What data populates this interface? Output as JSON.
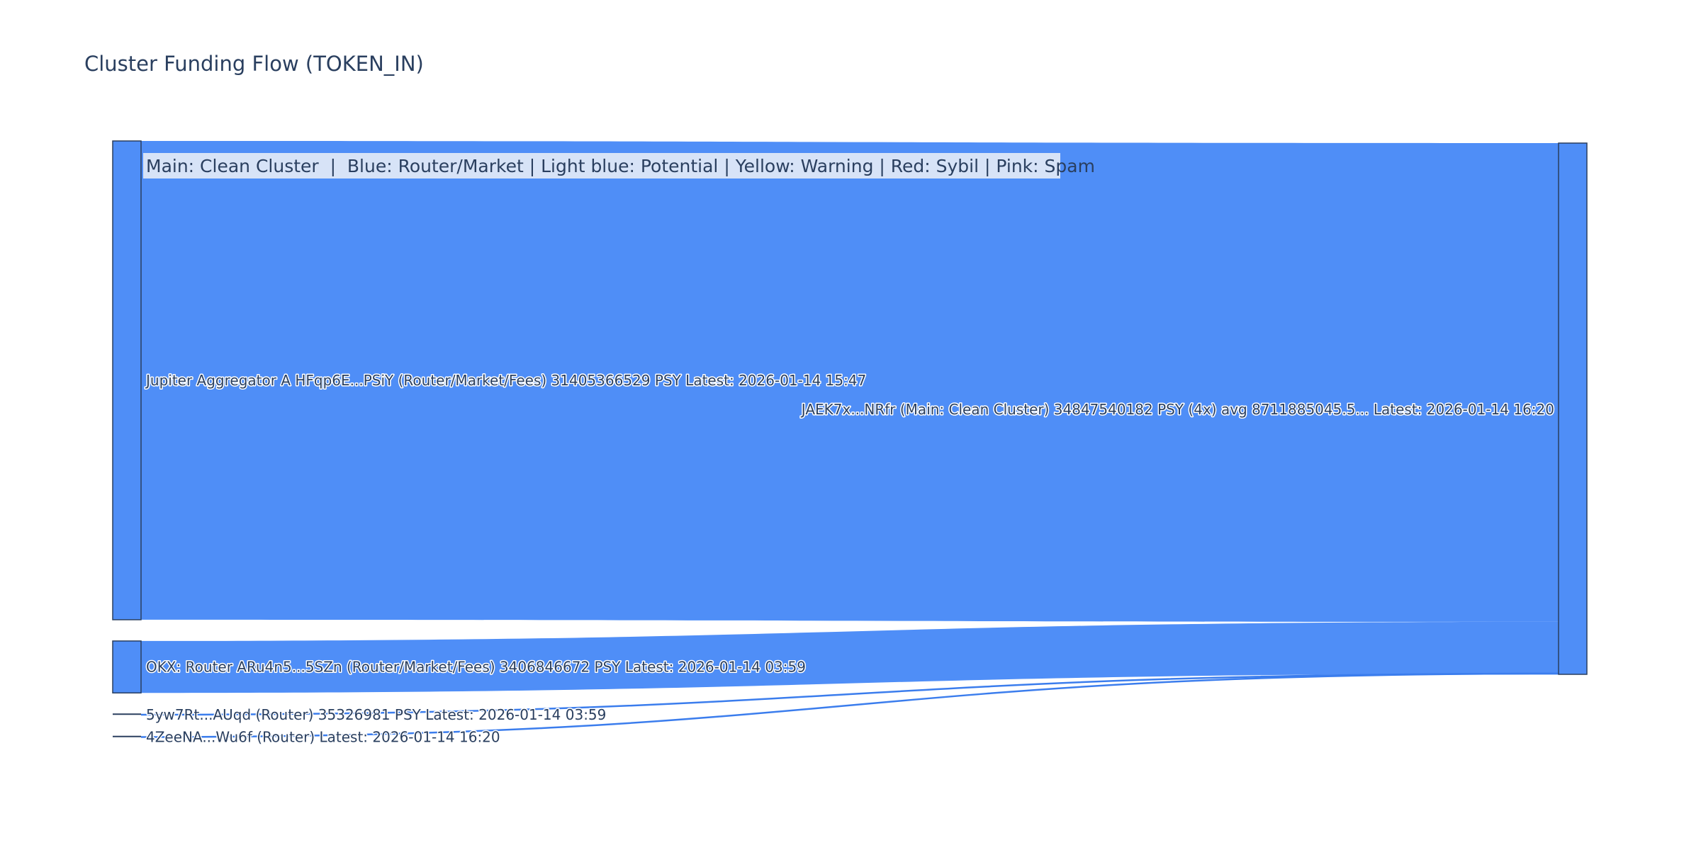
{
  "chart_data": {
    "type": "sankey",
    "title": "Cluster Funding Flow (TOKEN_IN)",
    "annotation": "Main: Clean Cluster  |  Blue: Router/Market | Light blue: Potential | Yellow: Warning | Red: Sybil | Pink: Spam",
    "link_color": "#4f8ef7",
    "node_color": "#4f8ef7",
    "nodes": [
      {
        "id": "jupiter",
        "label": "Jupiter Aggregator A HFqp6E...PSiY (Router/Market/Fees) 31405366529 PSY Latest: 2026-01-14 15:47",
        "column": "source"
      },
      {
        "id": "okx",
        "label": "OKX: Router ARu4n5...5SZn (Router/Market/Fees) 3406846672 PSY Latest: 2026-01-14 03:59",
        "column": "source"
      },
      {
        "id": "5yw7",
        "label": "5yw7Rt...AUqd (Router) 35326981 PSY Latest: 2026-01-14 03:59",
        "column": "source"
      },
      {
        "id": "4zee",
        "label": "4ZeeNA...Wu6f (Router) Latest: 2026-01-14 16:20",
        "column": "source"
      },
      {
        "id": "jaek",
        "label": "JAEK7x...NRfr (Main: Clean Cluster) 34847540182 PSY (4x) avg 8711885045.5... Latest: 2026-01-14 16:20",
        "column": "target"
      }
    ],
    "links": [
      {
        "source": "jupiter",
        "target": "jaek",
        "value": 31405366529
      },
      {
        "source": "okx",
        "target": "jaek",
        "value": 3406846672
      },
      {
        "source": "5yw7",
        "target": "jaek",
        "value": 35326981
      },
      {
        "source": "4zee",
        "target": "jaek",
        "value": 0
      }
    ]
  }
}
